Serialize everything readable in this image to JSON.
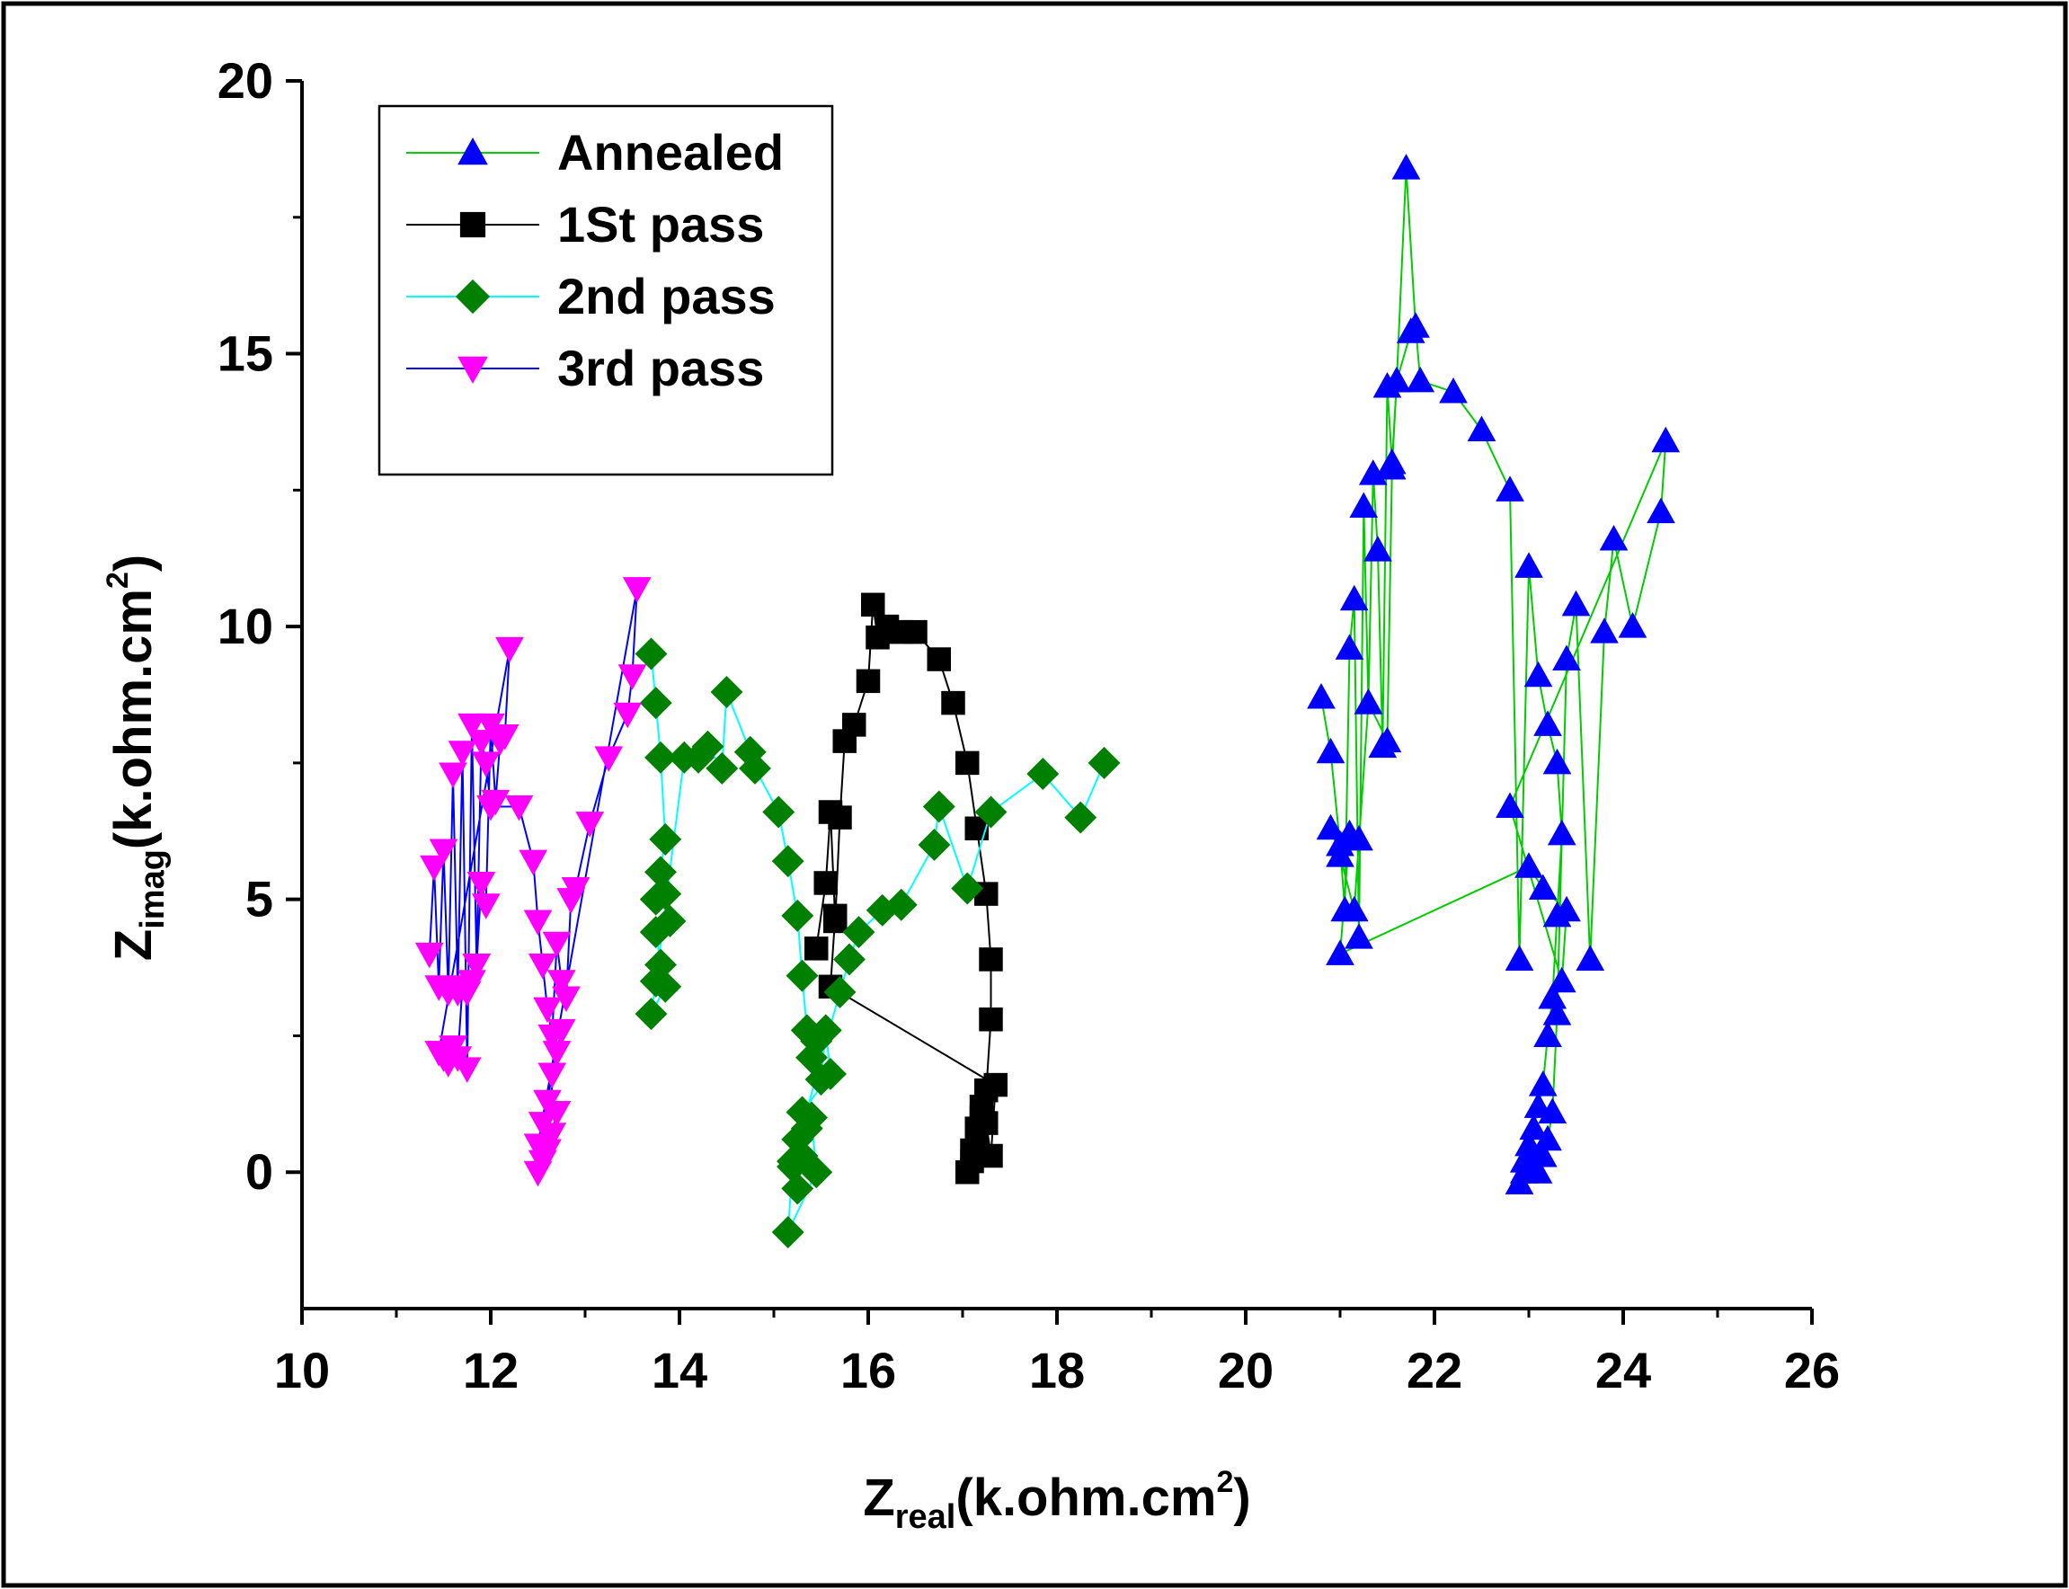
{
  "chart_data": {
    "type": "scatter",
    "title": "",
    "xlabel_main": "Z",
    "xlabel_sub": "real",
    "xlabel_rest": "(k.ohm.cm",
    "xlabel_sup": "2",
    "xlabel_close": ")",
    "ylabel_main": "Z",
    "ylabel_sub": "imag",
    "ylabel_rest": "(k.ohm.cm",
    "ylabel_sup": "2",
    "ylabel_close": ")",
    "xlim": [
      10,
      26
    ],
    "ylim": [
      -2.5,
      20
    ],
    "x_ticks": [
      10,
      12,
      14,
      16,
      18,
      20,
      22,
      24,
      26
    ],
    "y_ticks": [
      0,
      5,
      10,
      15,
      20
    ],
    "grid": false,
    "legend_position": "top-left",
    "series": [
      {
        "name": "Annealed",
        "marker": "triangle-up",
        "marker_color": "#0000ff",
        "line_color": "#00cc00",
        "x": [
          20.8,
          20.9,
          21.0,
          21.05,
          21.1,
          21.15,
          21.2,
          21.25,
          21.3,
          21.35,
          21.4,
          21.45,
          21.5,
          21.55,
          21.6,
          21.7,
          21.8,
          21.85,
          22.2,
          22.5,
          22.8,
          22.9,
          23.0,
          23.1,
          23.2,
          23.3,
          23.35,
          23.3,
          23.25,
          23.2,
          23.15,
          23.1,
          23.05,
          23.0,
          22.95,
          22.9,
          22.95,
          23.0,
          23.05,
          23.1,
          23.15,
          23.2,
          23.25,
          23.3,
          23.4,
          23.5,
          23.65,
          23.8,
          23.9,
          24.1,
          24.4,
          24.45,
          22.8,
          23.35,
          23.4,
          23.15,
          23.0,
          21.0,
          21.1,
          21.2,
          20.9,
          21.0,
          21.15,
          21.3,
          21.5,
          21.55,
          21.6,
          21.75
        ],
        "y": [
          8.7,
          7.7,
          6.0,
          4.8,
          9.6,
          10.5,
          4.3,
          12.2,
          8.6,
          12.8,
          11.4,
          7.8,
          14.4,
          13.0,
          14.5,
          18.4,
          15.5,
          14.5,
          14.3,
          13.6,
          12.5,
          3.9,
          11.1,
          9.1,
          8.2,
          7.5,
          6.2,
          4.7,
          3.2,
          2.5,
          1.6,
          1.2,
          0.8,
          0.3,
          0.0,
          -0.2,
          0.2,
          0.5,
          0.1,
          0.0,
          0.3,
          0.6,
          1.1,
          2.9,
          9.4,
          10.4,
          3.9,
          9.9,
          11.6,
          10.0,
          12.1,
          13.4,
          6.7,
          3.5,
          4.8,
          5.2,
          5.6,
          4.0,
          6.2,
          6.1,
          6.3,
          5.8,
          4.8,
          8.6,
          7.9,
          12.9,
          14.5,
          15.4
        ]
      },
      {
        "name": "1St pass",
        "marker": "square",
        "marker_color": "#000000",
        "line_color": "#000000",
        "x": [
          15.45,
          15.55,
          15.6,
          15.65,
          15.7,
          15.75,
          15.85,
          16.0,
          16.05,
          16.1,
          16.2,
          16.35,
          16.5,
          16.75,
          16.9,
          17.05,
          17.15,
          17.25,
          17.3,
          17.3,
          17.25,
          17.2,
          17.15,
          17.1,
          17.05,
          17.1,
          17.15,
          17.2,
          17.25,
          17.3,
          17.35,
          15.6,
          15.65
        ],
        "y": [
          4.1,
          5.3,
          6.6,
          4.6,
          6.5,
          7.9,
          8.2,
          9.0,
          10.4,
          9.8,
          10.0,
          9.9,
          9.9,
          9.4,
          8.6,
          7.5,
          6.3,
          5.1,
          3.9,
          2.8,
          1.5,
          1.0,
          0.6,
          0.2,
          0.0,
          0.4,
          0.8,
          1.2,
          0.9,
          0.3,
          1.6,
          3.4,
          4.7
        ]
      },
      {
        "name": "2nd pass",
        "marker": "diamond",
        "marker_color": "#008000",
        "line_color": "#00ffff",
        "x": [
          13.7,
          13.75,
          13.8,
          13.85,
          13.75,
          13.8,
          13.85,
          13.9,
          13.75,
          13.8,
          13.85,
          13.7,
          13.75,
          14.05,
          14.2,
          14.3,
          14.45,
          14.5,
          14.75,
          14.8,
          15.05,
          15.15,
          15.25,
          15.3,
          15.35,
          15.4,
          15.45,
          15.5,
          15.55,
          15.6,
          15.3,
          15.25,
          15.2,
          15.25,
          15.3,
          15.35,
          15.4,
          15.45,
          15.15,
          15.2,
          15.7,
          15.8,
          15.9,
          16.15,
          16.35,
          16.7,
          16.75,
          17.05,
          17.3,
          17.85,
          18.25,
          18.5
        ],
        "y": [
          9.5,
          8.6,
          7.6,
          6.1,
          5.0,
          5.5,
          5.1,
          4.6,
          4.4,
          3.8,
          3.4,
          2.9,
          3.5,
          7.6,
          7.6,
          7.8,
          7.4,
          8.8,
          7.7,
          7.4,
          6.6,
          5.7,
          4.7,
          3.6,
          2.6,
          2.1,
          2.4,
          1.7,
          2.6,
          1.8,
          1.1,
          0.6,
          0.1,
          -0.3,
          0.3,
          0.8,
          1.0,
          0.0,
          -1.1,
          0.2,
          3.3,
          3.9,
          4.4,
          4.8,
          4.9,
          6.0,
          6.7,
          5.2,
          6.6,
          7.3,
          6.5,
          7.5
        ]
      },
      {
        "name": "3rd pass",
        "marker": "triangle-down",
        "marker_color": "#ff00ff",
        "line_color": "#0000ff",
        "x": [
          11.35,
          11.4,
          11.45,
          11.5,
          11.55,
          11.6,
          11.65,
          11.7,
          11.75,
          11.8,
          11.85,
          11.9,
          11.95,
          12.0,
          12.05,
          12.1,
          12.15,
          12.2,
          11.45,
          11.5,
          11.55,
          11.6,
          11.65,
          11.7,
          11.75,
          11.8,
          11.85,
          11.9,
          11.95,
          12.0,
          12.3,
          12.45,
          12.5,
          12.55,
          12.6,
          12.65,
          12.7,
          12.75,
          12.8,
          12.85,
          12.9,
          13.05,
          13.25,
          13.45,
          13.5,
          13.55,
          12.5,
          12.55,
          12.6,
          12.65,
          12.7,
          12.75,
          12.5,
          12.55,
          12.6,
          12.65,
          12.7
        ],
        "y": [
          4.0,
          5.6,
          3.4,
          5.9,
          3.3,
          7.3,
          3.3,
          7.7,
          1.9,
          8.2,
          3.8,
          5.3,
          4.9,
          8.2,
          6.8,
          7.9,
          8.0,
          9.6,
          2.2,
          2.1,
          2.0,
          2.3,
          2.1,
          3.4,
          3.3,
          3.5,
          3.8,
          7.9,
          7.5,
          6.7,
          6.7,
          5.7,
          4.6,
          3.8,
          3.0,
          2.5,
          4.2,
          3.5,
          3.2,
          5.0,
          5.2,
          6.4,
          7.6,
          8.4,
          9.1,
          10.7,
          0.5,
          0.9,
          1.3,
          1.8,
          2.2,
          2.6,
          0.0,
          0.2,
          0.4,
          0.7,
          1.1
        ]
      }
    ]
  }
}
